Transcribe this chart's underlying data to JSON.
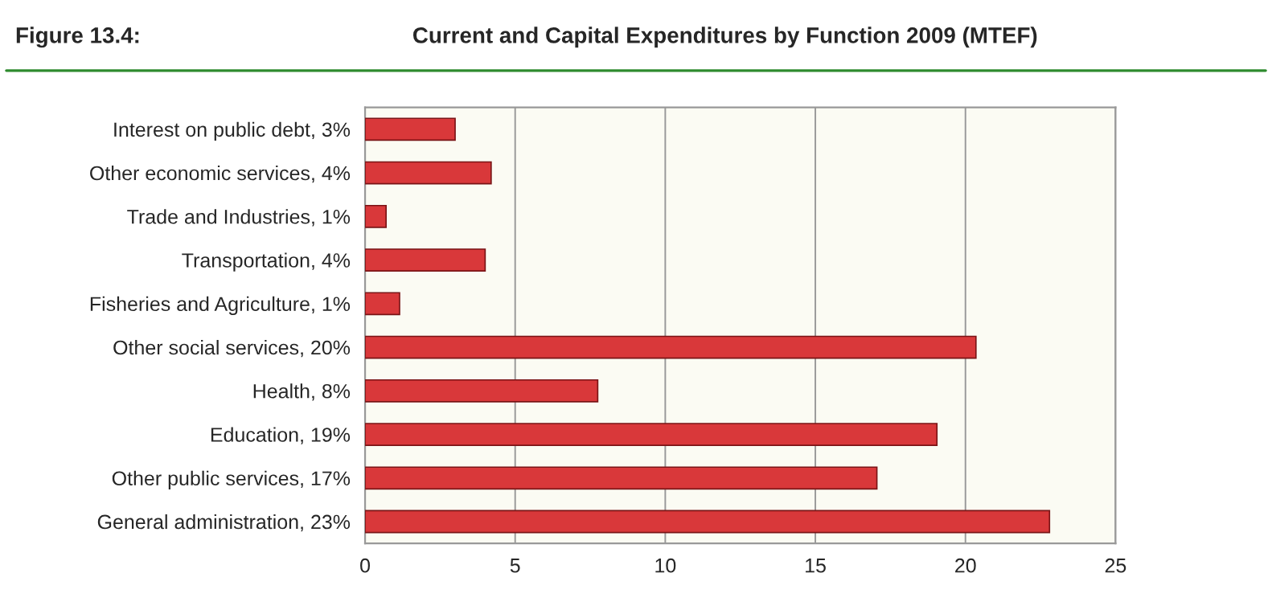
{
  "chart_data": {
    "type": "bar",
    "orientation": "horizontal",
    "title": "Current and Capital Expenditures by Function 2009 (MTEF)",
    "annotations": [
      "Figure 13.4:"
    ],
    "categories": [
      "Interest on public debt, 3%",
      "Other economic services, 4%",
      "Trade and Industries, 1%",
      "Transportation, 4%",
      "Fisheries and Agriculture, 1%",
      "Other social services, 20%",
      "Health, 8%",
      "Education, 19%",
      "Other public services, 17%",
      "General administration, 23%"
    ],
    "values": [
      3.0,
      4.2,
      0.7,
      4.0,
      1.15,
      20.35,
      7.75,
      19.05,
      17.05,
      22.8
    ],
    "color": "#d9383a",
    "xlim": [
      0,
      25
    ],
    "xticks": [
      0,
      5,
      10,
      15,
      20,
      25
    ],
    "grid": "x",
    "legend": false
  }
}
